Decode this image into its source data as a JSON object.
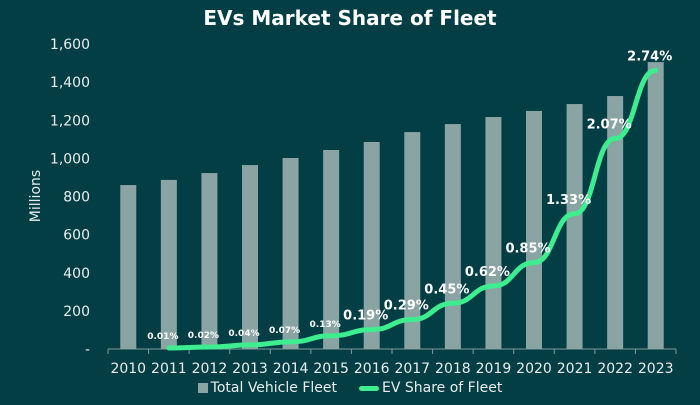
{
  "chart_data": {
    "type": "bar",
    "title": "EVs Market Share of Fleet",
    "ylabel": "Millions",
    "xlabel": "",
    "ylim": [
      0,
      1600
    ],
    "yticks": [
      "-",
      "200",
      "400",
      "600",
      "800",
      "1,000",
      "1,200",
      "1,400",
      "1,600"
    ],
    "categories": [
      "2010",
      "2011",
      "2012",
      "2013",
      "2014",
      "2015",
      "2016",
      "2017",
      "2018",
      "2019",
      "2020",
      "2021",
      "2022",
      "2023"
    ],
    "series": [
      {
        "name": "Total Vehicle Fleet",
        "type": "bar",
        "color": "#8aa3a3",
        "values": [
          860,
          887,
          923,
          965,
          1002,
          1044,
          1086,
          1138,
          1180,
          1217,
          1249,
          1285,
          1327,
          1505
        ]
      },
      {
        "name": "EV Share of Fleet",
        "type": "line",
        "color": "#3ded8f",
        "unit": "%",
        "values": [
          null,
          0.01,
          0.02,
          0.04,
          0.07,
          0.13,
          0.19,
          0.29,
          0.45,
          0.62,
          0.85,
          1.33,
          2.07,
          2.74
        ],
        "labels": [
          "",
          "0.01%",
          "0.02%",
          "0.04%",
          "0.07%",
          "0.13%",
          "0.19%",
          "0.29%",
          "0.45%",
          "0.62%",
          "0.85%",
          "1.33%",
          "2.07%",
          "2.74%"
        ]
      }
    ],
    "grid": false,
    "legend": "bottom"
  }
}
